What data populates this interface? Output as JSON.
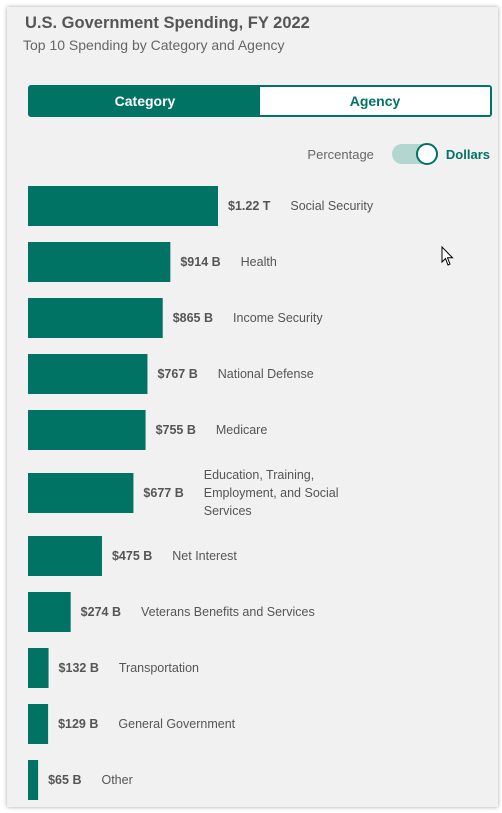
{
  "header": {
    "title": "U.S. Government Spending, FY 2022",
    "subtitle": "Top 10 Spending by Category and Agency"
  },
  "tabs": [
    {
      "label": "Category",
      "active": true
    },
    {
      "label": "Agency",
      "active": false
    }
  ],
  "toggle": {
    "off_label": "Percentage",
    "on_label": "Dollars",
    "state": "Dollars"
  },
  "colors": {
    "accent": "#007365",
    "track": "#b3d6d1"
  },
  "chart_data": {
    "type": "bar",
    "orientation": "horizontal",
    "unit": "USD",
    "categories": [
      "Social Security",
      "Health",
      "Income Security",
      "National Defense",
      "Medicare",
      "Education, Training, Employment, and Social Services",
      "Net Interest",
      "Veterans Benefits and Services",
      "Transportation",
      "General Government",
      "Other"
    ],
    "category_lines": [
      [
        "Social Security"
      ],
      [
        "Health"
      ],
      [
        "Income Security"
      ],
      [
        "National Defense"
      ],
      [
        "Medicare"
      ],
      [
        "Education, Training,",
        "Employment, and Social",
        "Services"
      ],
      [
        "Net Interest"
      ],
      [
        "Veterans Benefits and Services"
      ],
      [
        "Transportation"
      ],
      [
        "General Government"
      ],
      [
        "Other"
      ]
    ],
    "values": [
      1220,
      914,
      865,
      767,
      755,
      677,
      475,
      274,
      132,
      129,
      65
    ],
    "value_units": "billions",
    "labels": [
      "$1.22 T",
      "$914 B",
      "$865 B",
      "$767 B",
      "$755 B",
      "$677 B",
      "$475 B",
      "$274 B",
      "$132 B",
      "$129 B",
      "$65 B"
    ]
  }
}
